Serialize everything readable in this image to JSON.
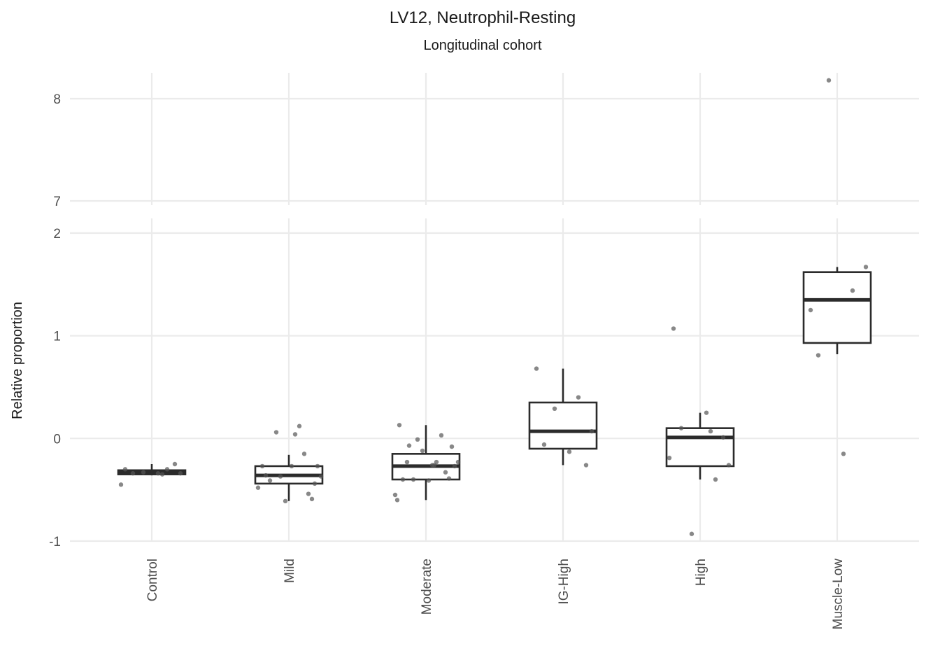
{
  "chart_data": {
    "type": "box",
    "title": "LV12, Neutrophil-Resting",
    "subtitle": "Longitudinal cohort",
    "ylabel": "Relative proportion",
    "xlabel": "",
    "categories": [
      "Control",
      "Mild",
      "Moderate",
      "IG-High",
      "High",
      "Muscle-Low"
    ],
    "y_break": {
      "lower_range": [
        -1,
        2.15
      ],
      "upper_range": [
        7,
        8.2
      ],
      "lower_ticks": [
        -1,
        0,
        1,
        2
      ],
      "upper_ticks": [
        7,
        8
      ]
    },
    "grid": true,
    "legend": "none",
    "colors": {
      "box": "#2b2b2b",
      "points": "#555555",
      "grid": "#ebebeb"
    },
    "boxes": [
      {
        "category": "Control",
        "q1": -0.35,
        "median": -0.33,
        "q3": -0.31,
        "whisker_low": -0.36,
        "whisker_high": -0.25
      },
      {
        "category": "Mild",
        "q1": -0.44,
        "median": -0.36,
        "q3": -0.27,
        "whisker_low": -0.61,
        "whisker_high": -0.16
      },
      {
        "category": "Moderate",
        "q1": -0.4,
        "median": -0.27,
        "q3": -0.15,
        "whisker_low": -0.6,
        "whisker_high": 0.13
      },
      {
        "category": "IG-High",
        "q1": -0.1,
        "median": 0.07,
        "q3": 0.35,
        "whisker_low": -0.26,
        "whisker_high": 0.68
      },
      {
        "category": "High",
        "q1": -0.27,
        "median": 0.01,
        "q3": 0.1,
        "whisker_low": -0.4,
        "whisker_high": 0.25
      },
      {
        "category": "Muscle-Low",
        "q1": 0.93,
        "median": 1.35,
        "q3": 1.62,
        "whisker_low": 0.82,
        "whisker_high": 1.67
      }
    ],
    "points": [
      {
        "category": "Control",
        "values": [
          -0.3,
          -0.3,
          -0.33,
          -0.34,
          -0.34,
          -0.34,
          -0.25,
          -0.45,
          -0.35
        ]
      },
      {
        "category": "Mild",
        "values": [
          -0.27,
          -0.15,
          -0.37,
          -0.27,
          -0.41,
          0.04,
          -0.59,
          -0.48,
          0.12,
          -0.61,
          -0.54,
          -0.36,
          -0.37,
          0.06,
          -0.27,
          -0.44
        ]
      },
      {
        "category": "Moderate",
        "values": [
          0.13,
          0.03,
          -0.01,
          -0.27,
          -0.23,
          -0.26,
          -0.39,
          -0.55,
          -0.23,
          -0.12,
          -0.33,
          -0.4,
          -0.23,
          -0.4,
          -0.41,
          -0.08,
          -0.07,
          -0.26,
          -0.6
        ]
      },
      {
        "category": "IG-High",
        "values": [
          0.68,
          0.4,
          0.29,
          0.07,
          -0.06,
          -0.13,
          -0.26
        ]
      },
      {
        "category": "High",
        "values": [
          1.07,
          -0.4,
          -0.93,
          -0.26,
          0.1,
          0.25,
          0.01,
          -0.19,
          0.07
        ]
      },
      {
        "category": "Muscle-Low",
        "values": [
          1.25,
          1.44,
          8.18,
          1.67,
          0.81,
          -0.15
        ]
      }
    ]
  }
}
